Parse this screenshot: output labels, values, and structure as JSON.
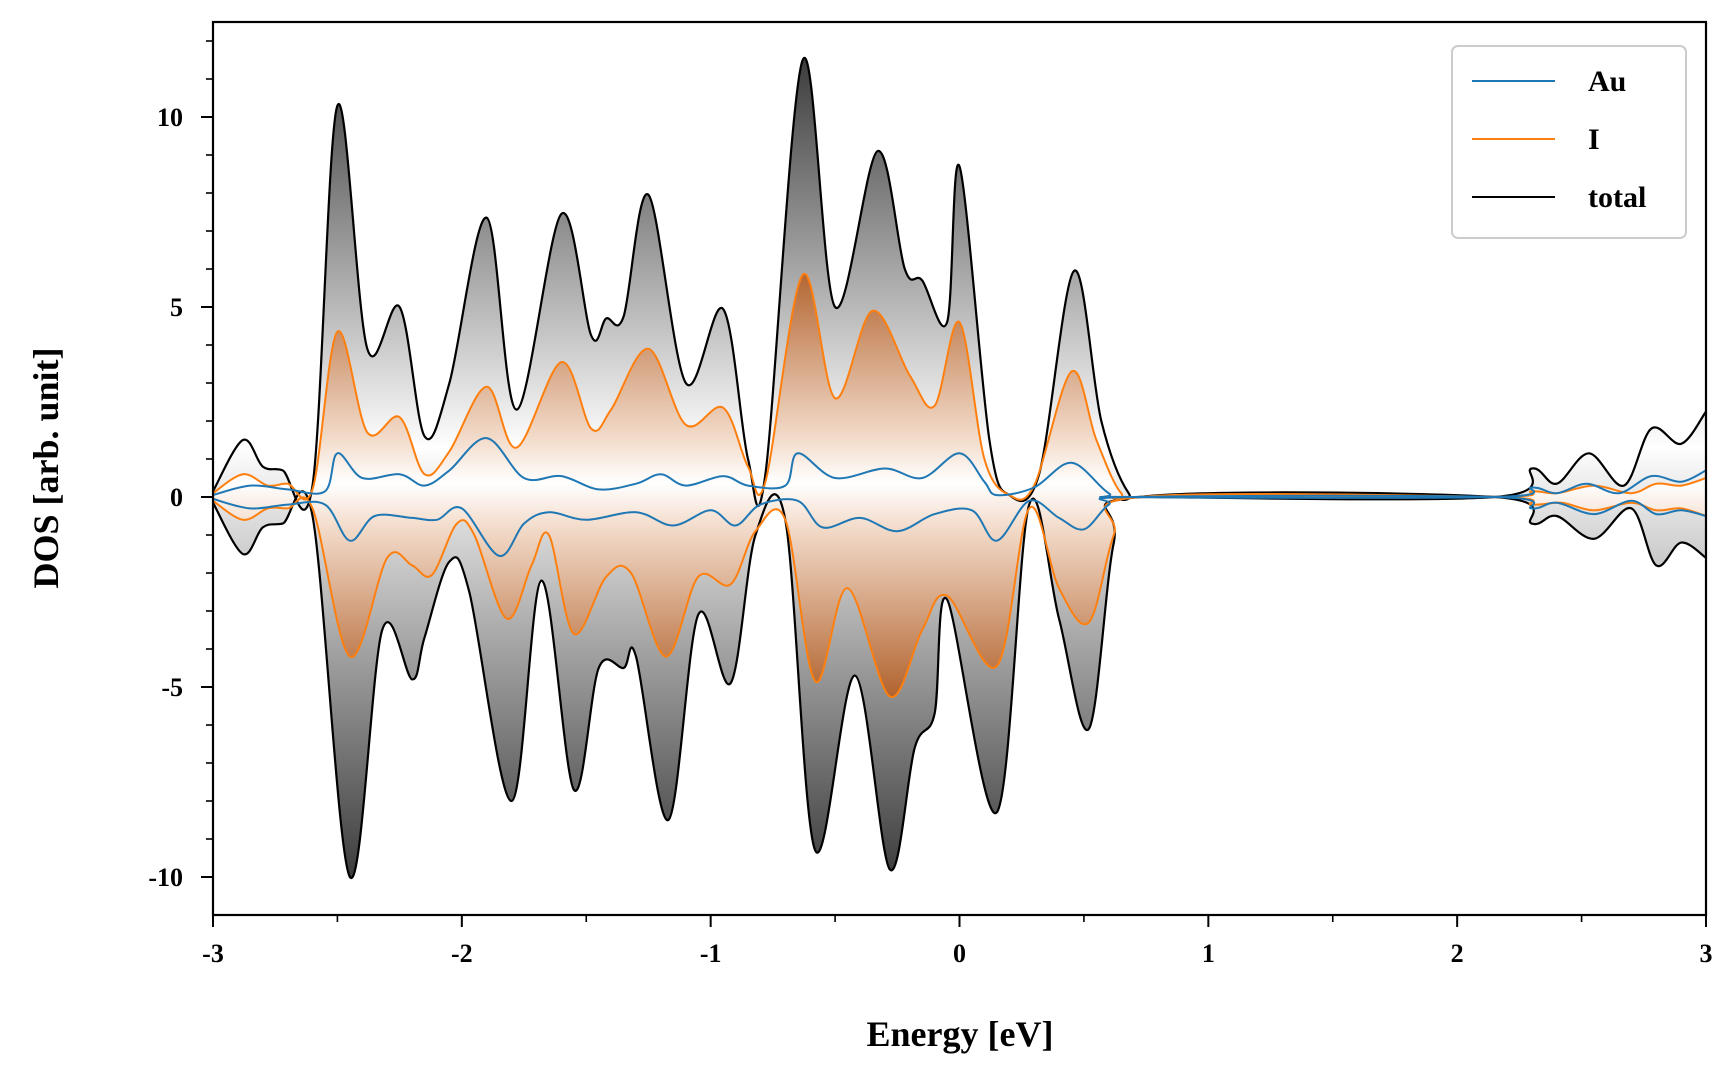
{
  "chart_data": {
    "type": "area",
    "title": "",
    "xlabel": "Energy [eV]",
    "ylabel": "DOS [arb. unit]",
    "xlim": [
      -3,
      3
    ],
    "ylim": [
      -11,
      12.5
    ],
    "x_ticks": [
      -3,
      -2,
      -1,
      0,
      1,
      2,
      3
    ],
    "x_tick_labels": [
      "-3",
      "-2",
      "-1",
      "0",
      "1",
      "2",
      "3"
    ],
    "y_ticks": [
      -10,
      -5,
      0,
      5,
      10
    ],
    "y_tick_labels": [
      "-10",
      "-5",
      "0",
      "5",
      "10"
    ],
    "grid": false,
    "legend_position": "top-right",
    "fill": "vertical gradient from white at DOS 0 to gray/orange at the peaks",
    "series": [
      {
        "name": "Au",
        "color": "#1f77b4",
        "up": [
          [
            -3.0,
            0.05
          ],
          [
            -2.85,
            0.3
          ],
          [
            -2.7,
            0.2
          ],
          [
            -2.55,
            0.15
          ],
          [
            -2.5,
            1.15
          ],
          [
            -2.4,
            0.5
          ],
          [
            -2.25,
            0.6
          ],
          [
            -2.15,
            0.3
          ],
          [
            -2.05,
            0.7
          ],
          [
            -1.9,
            1.55
          ],
          [
            -1.75,
            0.5
          ],
          [
            -1.6,
            0.55
          ],
          [
            -1.45,
            0.2
          ],
          [
            -1.3,
            0.35
          ],
          [
            -1.2,
            0.6
          ],
          [
            -1.1,
            0.3
          ],
          [
            -0.95,
            0.55
          ],
          [
            -0.85,
            0.3
          ],
          [
            -0.7,
            0.3
          ],
          [
            -0.65,
            1.15
          ],
          [
            -0.5,
            0.5
          ],
          [
            -0.3,
            0.75
          ],
          [
            -0.15,
            0.5
          ],
          [
            0.0,
            1.15
          ],
          [
            0.1,
            0.4
          ],
          [
            0.15,
            0.05
          ],
          [
            0.3,
            0.25
          ],
          [
            0.45,
            0.9
          ],
          [
            0.6,
            0.1
          ],
          [
            0.7,
            0.0
          ],
          [
            2.15,
            0.0
          ],
          [
            2.3,
            0.25
          ],
          [
            2.4,
            0.1
          ],
          [
            2.52,
            0.35
          ],
          [
            2.65,
            0.1
          ],
          [
            2.78,
            0.55
          ],
          [
            2.9,
            0.4
          ],
          [
            3.0,
            0.7
          ]
        ],
        "down": [
          [
            -3.0,
            -0.05
          ],
          [
            -2.85,
            -0.3
          ],
          [
            -2.7,
            -0.2
          ],
          [
            -2.55,
            -0.2
          ],
          [
            -2.45,
            -1.15
          ],
          [
            -2.35,
            -0.5
          ],
          [
            -2.2,
            -0.55
          ],
          [
            -2.1,
            -0.6
          ],
          [
            -2.0,
            -0.3
          ],
          [
            -1.85,
            -1.55
          ],
          [
            -1.75,
            -0.7
          ],
          [
            -1.65,
            -0.4
          ],
          [
            -1.5,
            -0.6
          ],
          [
            -1.3,
            -0.4
          ],
          [
            -1.15,
            -0.75
          ],
          [
            -1.0,
            -0.35
          ],
          [
            -0.9,
            -0.75
          ],
          [
            -0.8,
            -0.2
          ],
          [
            -0.65,
            -0.1
          ],
          [
            -0.55,
            -0.8
          ],
          [
            -0.4,
            -0.55
          ],
          [
            -0.25,
            -0.9
          ],
          [
            -0.1,
            -0.45
          ],
          [
            0.05,
            -0.35
          ],
          [
            0.15,
            -1.15
          ],
          [
            0.28,
            -0.1
          ],
          [
            0.4,
            -0.55
          ],
          [
            0.5,
            -0.85
          ],
          [
            0.6,
            -0.2
          ],
          [
            0.7,
            0.0
          ],
          [
            2.15,
            0.0
          ],
          [
            2.3,
            -0.3
          ],
          [
            2.4,
            -0.15
          ],
          [
            2.55,
            -0.45
          ],
          [
            2.7,
            -0.1
          ],
          [
            2.8,
            -0.45
          ],
          [
            2.9,
            -0.35
          ],
          [
            3.0,
            -0.5
          ]
        ]
      },
      {
        "name": "I",
        "color": "#ff7f0e",
        "up": [
          [
            -3.0,
            0.1
          ],
          [
            -2.88,
            0.6
          ],
          [
            -2.78,
            0.3
          ],
          [
            -2.7,
            0.35
          ],
          [
            -2.6,
            0.2
          ],
          [
            -2.5,
            4.35
          ],
          [
            -2.38,
            1.7
          ],
          [
            -2.25,
            2.1
          ],
          [
            -2.15,
            0.6
          ],
          [
            -2.05,
            1.2
          ],
          [
            -1.9,
            2.9
          ],
          [
            -1.78,
            1.3
          ],
          [
            -1.6,
            3.55
          ],
          [
            -1.48,
            1.8
          ],
          [
            -1.4,
            2.3
          ],
          [
            -1.25,
            3.9
          ],
          [
            -1.1,
            1.9
          ],
          [
            -0.95,
            2.35
          ],
          [
            -0.85,
            0.8
          ],
          [
            -0.78,
            0.4
          ],
          [
            -0.63,
            5.85
          ],
          [
            -0.5,
            2.6
          ],
          [
            -0.35,
            4.9
          ],
          [
            -0.2,
            3.2
          ],
          [
            -0.1,
            2.4
          ],
          [
            0.0,
            4.6
          ],
          [
            0.1,
            1.0
          ],
          [
            0.2,
            0.05
          ],
          [
            0.3,
            0.3
          ],
          [
            0.45,
            3.3
          ],
          [
            0.55,
            1.5
          ],
          [
            0.65,
            0.1
          ],
          [
            0.75,
            0.0
          ],
          [
            2.15,
            0.0
          ],
          [
            2.3,
            0.15
          ],
          [
            2.4,
            0.1
          ],
          [
            2.55,
            0.3
          ],
          [
            2.7,
            0.1
          ],
          [
            2.8,
            0.35
          ],
          [
            2.9,
            0.3
          ],
          [
            3.0,
            0.5
          ]
        ],
        "down": [
          [
            -3.0,
            -0.1
          ],
          [
            -2.88,
            -0.6
          ],
          [
            -2.78,
            -0.3
          ],
          [
            -2.7,
            -0.3
          ],
          [
            -2.6,
            -0.3
          ],
          [
            -2.45,
            -4.2
          ],
          [
            -2.3,
            -1.6
          ],
          [
            -2.2,
            -1.8
          ],
          [
            -2.12,
            -2.05
          ],
          [
            -2.02,
            -0.7
          ],
          [
            -1.95,
            -1.0
          ],
          [
            -1.82,
            -3.2
          ],
          [
            -1.72,
            -1.8
          ],
          [
            -1.65,
            -1.0
          ],
          [
            -1.55,
            -3.6
          ],
          [
            -1.42,
            -2.1
          ],
          [
            -1.32,
            -2.0
          ],
          [
            -1.18,
            -4.2
          ],
          [
            -1.05,
            -2.1
          ],
          [
            -0.92,
            -2.3
          ],
          [
            -0.82,
            -0.9
          ],
          [
            -0.7,
            -0.6
          ],
          [
            -0.58,
            -4.85
          ],
          [
            -0.45,
            -2.4
          ],
          [
            -0.28,
            -5.25
          ],
          [
            -0.15,
            -3.5
          ],
          [
            -0.05,
            -2.6
          ],
          [
            0.15,
            -4.45
          ],
          [
            0.28,
            -0.3
          ],
          [
            0.4,
            -2.4
          ],
          [
            0.52,
            -3.3
          ],
          [
            0.62,
            -1.0
          ],
          [
            0.72,
            0.0
          ],
          [
            2.15,
            0.0
          ],
          [
            2.3,
            -0.2
          ],
          [
            2.42,
            -0.15
          ],
          [
            2.55,
            -0.35
          ],
          [
            2.7,
            -0.15
          ],
          [
            2.8,
            -0.35
          ],
          [
            2.9,
            -0.3
          ],
          [
            3.0,
            -0.5
          ]
        ]
      },
      {
        "name": "total",
        "color": "#000000",
        "up": [
          [
            -3.0,
            0.15
          ],
          [
            -2.88,
            1.5
          ],
          [
            -2.8,
            0.8
          ],
          [
            -2.72,
            0.7
          ],
          [
            -2.6,
            0.3
          ],
          [
            -2.5,
            10.3
          ],
          [
            -2.38,
            3.9
          ],
          [
            -2.25,
            5.0
          ],
          [
            -2.15,
            1.6
          ],
          [
            -2.05,
            3.0
          ],
          [
            -1.9,
            7.35
          ],
          [
            -1.78,
            2.3
          ],
          [
            -1.6,
            7.45
          ],
          [
            -1.48,
            4.25
          ],
          [
            -1.42,
            4.7
          ],
          [
            -1.35,
            4.75
          ],
          [
            -1.25,
            7.95
          ],
          [
            -1.1,
            3.0
          ],
          [
            -0.95,
            4.95
          ],
          [
            -0.85,
            1.0
          ],
          [
            -0.78,
            0.6
          ],
          [
            -0.63,
            11.5
          ],
          [
            -0.5,
            5.0
          ],
          [
            -0.33,
            9.1
          ],
          [
            -0.22,
            6.0
          ],
          [
            -0.15,
            5.7
          ],
          [
            -0.05,
            4.6
          ],
          [
            0.0,
            8.7
          ],
          [
            0.12,
            1.5
          ],
          [
            0.2,
            0.05
          ],
          [
            0.32,
            0.6
          ],
          [
            0.46,
            5.95
          ],
          [
            0.57,
            2.0
          ],
          [
            0.68,
            0.1
          ],
          [
            0.78,
            0.0
          ],
          [
            2.15,
            0.0
          ],
          [
            2.3,
            0.75
          ],
          [
            2.4,
            0.35
          ],
          [
            2.53,
            1.15
          ],
          [
            2.67,
            0.3
          ],
          [
            2.78,
            1.8
          ],
          [
            2.9,
            1.4
          ],
          [
            3.0,
            2.25
          ]
        ],
        "down": [
          [
            -3.0,
            -0.15
          ],
          [
            -2.88,
            -1.5
          ],
          [
            -2.8,
            -0.8
          ],
          [
            -2.72,
            -0.7
          ],
          [
            -2.6,
            -0.5
          ],
          [
            -2.45,
            -10.0
          ],
          [
            -2.32,
            -3.5
          ],
          [
            -2.2,
            -4.8
          ],
          [
            -2.15,
            -3.7
          ],
          [
            -2.05,
            -1.7
          ],
          [
            -1.97,
            -2.5
          ],
          [
            -1.8,
            -8.0
          ],
          [
            -1.68,
            -2.2
          ],
          [
            -1.55,
            -7.7
          ],
          [
            -1.45,
            -4.5
          ],
          [
            -1.35,
            -4.5
          ],
          [
            -1.3,
            -4.2
          ],
          [
            -1.17,
            -8.5
          ],
          [
            -1.05,
            -3.1
          ],
          [
            -0.92,
            -4.9
          ],
          [
            -0.82,
            -1.0
          ],
          [
            -0.7,
            -0.6
          ],
          [
            -0.58,
            -9.3
          ],
          [
            -0.42,
            -4.7
          ],
          [
            -0.28,
            -9.8
          ],
          [
            -0.18,
            -6.6
          ],
          [
            -0.1,
            -5.7
          ],
          [
            -0.05,
            -2.7
          ],
          [
            0.15,
            -8.3
          ],
          [
            0.28,
            -0.2
          ],
          [
            0.4,
            -3.2
          ],
          [
            0.52,
            -6.1
          ],
          [
            0.62,
            -1.2
          ],
          [
            0.72,
            0.0
          ],
          [
            2.15,
            0.0
          ],
          [
            2.3,
            -0.7
          ],
          [
            2.4,
            -0.5
          ],
          [
            2.55,
            -1.1
          ],
          [
            2.7,
            -0.3
          ],
          [
            2.8,
            -1.8
          ],
          [
            2.9,
            -1.2
          ],
          [
            3.0,
            -1.6
          ]
        ]
      }
    ]
  }
}
